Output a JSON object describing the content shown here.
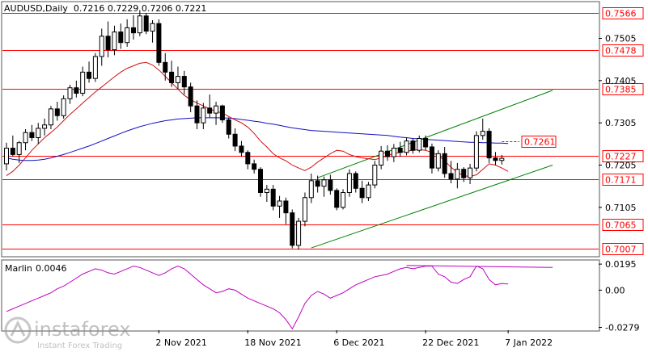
{
  "chart_data": {
    "type": "candlestick",
    "title": "AUDUSD,Daily  0.7216 0.7229 0.7206 0.7221",
    "symbol": "AUDUSD",
    "timeframe": "Daily",
    "ohlc_last": {
      "open": 0.7216,
      "high": 0.7229,
      "low": 0.7206,
      "close": 0.7221
    },
    "price_axis": {
      "ticks": [
        "0.7505",
        "0.7405",
        "0.7305",
        "0.7205",
        "0.7105"
      ],
      "ylim": [
        0.699,
        0.759
      ]
    },
    "horizontal_levels": [
      {
        "value": 0.7566,
        "label": "0.7566",
        "color": "#ff0000"
      },
      {
        "value": 0.7478,
        "label": "0.7478",
        "color": "#ff0000"
      },
      {
        "value": 0.7385,
        "label": "0.7385",
        "color": "#ff0000"
      },
      {
        "value": 0.7227,
        "label": "0.7227",
        "color": "#ff0000"
      },
      {
        "value": 0.7171,
        "label": "0.7171",
        "color": "#ff0000"
      },
      {
        "value": 0.7065,
        "label": "0.7065",
        "color": "#ff0000"
      },
      {
        "value": 0.7007,
        "label": "0.7007",
        "color": "#ff0000"
      }
    ],
    "marker_level": {
      "value": 0.7261,
      "label": "0.7261",
      "color": "#ff0000"
    },
    "x_axis": {
      "labels": [
        "2 Nov 2021",
        "18 Nov 2021",
        "6 Dec 2021",
        "22 Dec 2021",
        "7 Jan 2022"
      ]
    },
    "candles": [
      [
        0.7208,
        0.7258,
        0.7192,
        0.7245
      ],
      [
        0.7245,
        0.7275,
        0.7225,
        0.723
      ],
      [
        0.723,
        0.7262,
        0.721,
        0.7258
      ],
      [
        0.7258,
        0.729,
        0.724,
        0.7282
      ],
      [
        0.7282,
        0.73,
        0.7262,
        0.727
      ],
      [
        0.727,
        0.7305,
        0.7255,
        0.7292
      ],
      [
        0.7292,
        0.7315,
        0.7275,
        0.73
      ],
      [
        0.73,
        0.7345,
        0.729,
        0.7338
      ],
      [
        0.7338,
        0.7355,
        0.731,
        0.7322
      ],
      [
        0.7322,
        0.737,
        0.7315,
        0.7362
      ],
      [
        0.7362,
        0.7395,
        0.735,
        0.7388
      ],
      [
        0.7388,
        0.7405,
        0.7365,
        0.7375
      ],
      [
        0.7375,
        0.7438,
        0.7368,
        0.7425
      ],
      [
        0.7425,
        0.745,
        0.74,
        0.741
      ],
      [
        0.741,
        0.747,
        0.7402,
        0.7462
      ],
      [
        0.7462,
        0.7528,
        0.744,
        0.751
      ],
      [
        0.751,
        0.7545,
        0.746,
        0.7478
      ],
      [
        0.7478,
        0.7535,
        0.7465,
        0.752
      ],
      [
        0.752,
        0.754,
        0.748,
        0.7495
      ],
      [
        0.7495,
        0.755,
        0.7485,
        0.753
      ],
      [
        0.753,
        0.756,
        0.7502,
        0.7518
      ],
      [
        0.7518,
        0.7572,
        0.751,
        0.7558
      ],
      [
        0.7558,
        0.7565,
        0.7515,
        0.7522
      ],
      [
        0.7522,
        0.7548,
        0.7495,
        0.754
      ],
      [
        0.754,
        0.755,
        0.744,
        0.7448
      ],
      [
        0.7448,
        0.747,
        0.7405,
        0.7425
      ],
      [
        0.7425,
        0.7452,
        0.739,
        0.74
      ],
      [
        0.74,
        0.7438,
        0.7385,
        0.7415
      ],
      [
        0.7415,
        0.7428,
        0.7372,
        0.739
      ],
      [
        0.739,
        0.74,
        0.733,
        0.7345
      ],
      [
        0.7345,
        0.7358,
        0.729,
        0.7305
      ],
      [
        0.7305,
        0.7352,
        0.729,
        0.734
      ],
      [
        0.734,
        0.7372,
        0.7318,
        0.7328
      ],
      [
        0.7328,
        0.7355,
        0.73,
        0.7345
      ],
      [
        0.7345,
        0.7348,
        0.7305,
        0.7312
      ],
      [
        0.7312,
        0.7318,
        0.7268,
        0.7278
      ],
      [
        0.7278,
        0.7292,
        0.7238,
        0.725
      ],
      [
        0.725,
        0.7262,
        0.7225,
        0.7235
      ],
      [
        0.7235,
        0.724,
        0.7195,
        0.7208
      ],
      [
        0.7208,
        0.7218,
        0.7185,
        0.7195
      ],
      [
        0.7195,
        0.72,
        0.713,
        0.714
      ],
      [
        0.714,
        0.7158,
        0.7118,
        0.7148
      ],
      [
        0.7148,
        0.7158,
        0.7098,
        0.7108
      ],
      [
        0.7108,
        0.7132,
        0.708,
        0.712
      ],
      [
        0.712,
        0.7128,
        0.7065,
        0.7092
      ],
      [
        0.7092,
        0.71,
        0.7008,
        0.7015
      ],
      [
        0.7015,
        0.708,
        0.7005,
        0.7072
      ],
      [
        0.7072,
        0.714,
        0.706,
        0.7128
      ],
      [
        0.7128,
        0.7185,
        0.7115,
        0.7168
      ],
      [
        0.7168,
        0.718,
        0.714,
        0.7155
      ],
      [
        0.7155,
        0.7178,
        0.713,
        0.717
      ],
      [
        0.717,
        0.7182,
        0.7135,
        0.7145
      ],
      [
        0.7145,
        0.715,
        0.7098,
        0.7105
      ],
      [
        0.7105,
        0.7148,
        0.71,
        0.714
      ],
      [
        0.714,
        0.7195,
        0.713,
        0.7185
      ],
      [
        0.7185,
        0.719,
        0.714,
        0.715
      ],
      [
        0.715,
        0.7168,
        0.7115,
        0.7128
      ],
      [
        0.7128,
        0.7165,
        0.712,
        0.7158
      ],
      [
        0.7158,
        0.7215,
        0.715,
        0.7205
      ],
      [
        0.7205,
        0.725,
        0.7195,
        0.7238
      ],
      [
        0.7238,
        0.7252,
        0.7215,
        0.7225
      ],
      [
        0.7225,
        0.7255,
        0.7212,
        0.7245
      ],
      [
        0.7245,
        0.726,
        0.7225,
        0.7235
      ],
      [
        0.7235,
        0.727,
        0.7228,
        0.7262
      ],
      [
        0.7262,
        0.7268,
        0.7232,
        0.724
      ],
      [
        0.724,
        0.7275,
        0.7235,
        0.7268
      ],
      [
        0.7268,
        0.7275,
        0.724,
        0.7248
      ],
      [
        0.7248,
        0.7256,
        0.7185,
        0.7198
      ],
      [
        0.7198,
        0.724,
        0.719,
        0.7232
      ],
      [
        0.7232,
        0.7248,
        0.7175,
        0.7185
      ],
      [
        0.7185,
        0.7215,
        0.7162,
        0.7172
      ],
      [
        0.7172,
        0.721,
        0.715,
        0.7195
      ],
      [
        0.7195,
        0.72,
        0.7165,
        0.7175
      ],
      [
        0.7175,
        0.7208,
        0.716,
        0.7198
      ],
      [
        0.7198,
        0.7285,
        0.719,
        0.7275
      ],
      [
        0.7275,
        0.7315,
        0.7265,
        0.7285
      ],
      [
        0.7285,
        0.7292,
        0.721,
        0.7222
      ],
      [
        0.7222,
        0.7236,
        0.7205,
        0.7216
      ],
      [
        0.7216,
        0.7229,
        0.7206,
        0.7221
      ]
    ],
    "red_line": [
      0.718,
      0.719,
      0.7205,
      0.7222,
      0.724,
      0.7255,
      0.727,
      0.7282,
      0.7295,
      0.731,
      0.7325,
      0.7338,
      0.7352,
      0.7365,
      0.7378,
      0.739,
      0.7402,
      0.7414,
      0.7425,
      0.7434,
      0.744,
      0.7446,
      0.7448,
      0.7442,
      0.743,
      0.7415,
      0.74,
      0.7385,
      0.737,
      0.736,
      0.7352,
      0.7345,
      0.7338,
      0.7332,
      0.7328,
      0.732,
      0.7312,
      0.7305,
      0.7295,
      0.728,
      0.7262,
      0.7248,
      0.7232,
      0.7222,
      0.7215,
      0.7205,
      0.7198,
      0.7192,
      0.72,
      0.7212,
      0.7222,
      0.7232,
      0.724,
      0.7238,
      0.723,
      0.7225,
      0.7222,
      0.722,
      0.7218,
      0.7222,
      0.7228,
      0.7232,
      0.7235,
      0.7238,
      0.724,
      0.7242,
      0.724,
      0.7235,
      0.7228,
      0.7215,
      0.72,
      0.7188,
      0.718,
      0.7178,
      0.7182,
      0.7195,
      0.7208,
      0.7205,
      0.7198,
      0.719
    ],
    "blue_line": [
      0.7222,
      0.7219,
      0.7217,
      0.7216,
      0.7216,
      0.7217,
      0.7219,
      0.7222,
      0.7226,
      0.723,
      0.7235,
      0.724,
      0.7245,
      0.725,
      0.7256,
      0.7262,
      0.7268,
      0.7274,
      0.728,
      0.7286,
      0.7291,
      0.7296,
      0.73,
      0.7304,
      0.7307,
      0.731,
      0.7312,
      0.7314,
      0.7315,
      0.7316,
      0.7317,
      0.7317,
      0.7317,
      0.7317,
      0.7317,
      0.7316,
      0.7315,
      0.7313,
      0.7311,
      0.7309,
      0.7307,
      0.7304,
      0.7302,
      0.7299,
      0.7296,
      0.7293,
      0.7291,
      0.7289,
      0.7287,
      0.7286,
      0.7285,
      0.7284,
      0.7283,
      0.7282,
      0.7281,
      0.728,
      0.7279,
      0.7278,
      0.7277,
      0.7276,
      0.7275,
      0.7273,
      0.7271,
      0.727,
      0.7268,
      0.7267,
      0.7266,
      0.7265,
      0.7264,
      0.7263,
      0.7262,
      0.7261,
      0.726,
      0.7259,
      0.7259,
      0.7258,
      0.7258,
      0.7257,
      0.7257,
      0.7256
    ],
    "channel": {
      "upper": {
        "from": {
          "bar": 49,
          "value": 0.7175
        },
        "to": {
          "bar": 86,
          "value": 0.7382
        }
      },
      "lower": {
        "from": {
          "bar": 48,
          "value": 0.7009
        },
        "to": {
          "bar": 86,
          "value": 0.7205
        }
      }
    },
    "indicator": {
      "name": "Marlin",
      "value_text": "0.0046",
      "ticks": [
        "0.0195",
        "0.00",
        "-0.0279"
      ],
      "ylim": [
        -0.03,
        0.022
      ],
      "values": [
        -0.016,
        -0.014,
        -0.012,
        -0.01,
        -0.008,
        -0.006,
        -0.004,
        -0.002,
        0.001,
        0.003,
        0.006,
        0.009,
        0.012,
        0.014,
        0.016,
        0.015,
        0.013,
        0.012,
        0.014,
        0.016,
        0.018,
        0.017,
        0.015,
        0.013,
        0.011,
        0.013,
        0.016,
        0.018,
        0.016,
        0.012,
        0.008,
        0.004,
        0.001,
        -0.002,
        -0.001,
        0.001,
        0.0,
        -0.003,
        -0.006,
        -0.008,
        -0.01,
        -0.012,
        -0.014,
        -0.017,
        -0.022,
        -0.029,
        -0.02,
        -0.01,
        -0.004,
        -0.001,
        -0.003,
        -0.006,
        -0.004,
        -0.002,
        0.001,
        0.004,
        0.006,
        0.008,
        0.01,
        0.011,
        0.012,
        0.014,
        0.016,
        0.017,
        0.016,
        0.017,
        0.018,
        0.018,
        0.012,
        0.01,
        0.006,
        0.005,
        0.008,
        0.01,
        0.018,
        0.016,
        0.008,
        0.004,
        0.005,
        0.0046
      ],
      "overlay": [
        {
          "from": {
            "bar": 63,
            "value": 0.0185
          },
          "to": {
            "bar": 86,
            "value": 0.017
          },
          "color": "#c000c0"
        }
      ]
    },
    "colors": {
      "background": "#ffffff",
      "candle_body": "#000000",
      "levels": "#ff0000",
      "red_line": "#d01010",
      "blue_line": "#1010c0",
      "channel": "#008000",
      "oscillator": "#c000c0"
    },
    "watermark": {
      "brand": "instaforex",
      "tagline": "Instant Forex Trading"
    }
  }
}
